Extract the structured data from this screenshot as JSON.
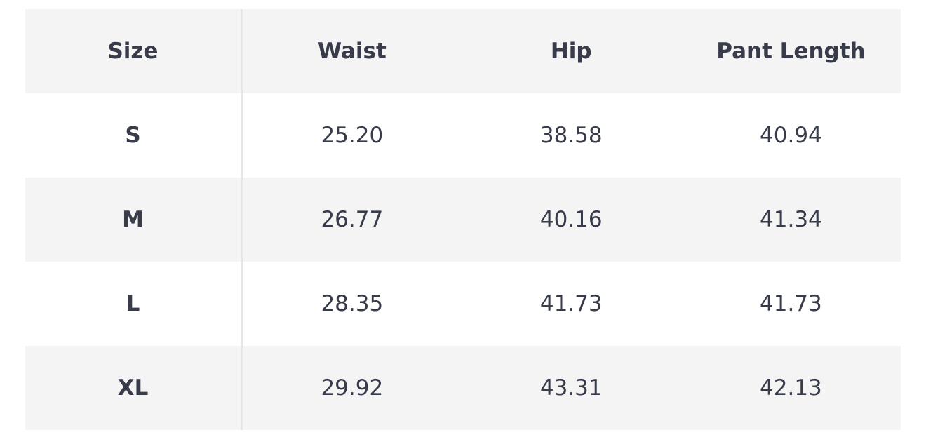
{
  "table": {
    "header": [
      "Size",
      "Waist",
      "Hip",
      "Pant Length"
    ],
    "rows": [
      [
        "S",
        "25.20",
        "38.58",
        "40.94"
      ],
      [
        "M",
        "26.77",
        "40.16",
        "41.34"
      ],
      [
        "L",
        "28.35",
        "41.73",
        "41.73"
      ],
      [
        "XL",
        "29.92",
        "43.31",
        "42.13"
      ]
    ]
  }
}
